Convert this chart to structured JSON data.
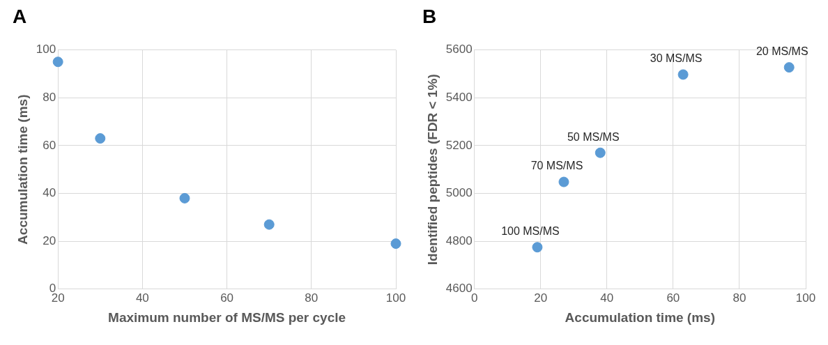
{
  "chart_data": [
    {
      "type": "scatter",
      "title": "A",
      "xlabel": "Maximum number of MS/MS per cycle",
      "ylabel": "Accumulation time (ms)",
      "x": [
        20,
        30,
        50,
        70,
        100
      ],
      "series": [
        {
          "color": "#5b9bd5",
          "values": [
            95,
            63,
            38,
            27,
            19
          ]
        }
      ],
      "xlim": [
        20,
        100
      ],
      "xticks": [
        20,
        40,
        60,
        80,
        100
      ],
      "ylim": [
        0,
        100
      ],
      "yticks": [
        0,
        20,
        40,
        60,
        80,
        100
      ],
      "grid": true,
      "marker": "circle"
    },
    {
      "type": "scatter",
      "title": "B",
      "xlabel": "Accumulation time (ms)",
      "ylabel": "Identified peptides (FDR < 1%)",
      "x": [
        19,
        27,
        38,
        63,
        95
      ],
      "series": [
        {
          "color": "#5b9bd5",
          "values": [
            4775,
            5048,
            5170,
            5497,
            5527
          ]
        }
      ],
      "xlim": [
        0,
        100
      ],
      "xticks": [
        0,
        20,
        40,
        60,
        80,
        100
      ],
      "ylim": [
        4600,
        5600
      ],
      "yticks": [
        4600,
        4800,
        5000,
        5200,
        5400,
        5600
      ],
      "grid": true,
      "marker": "circle",
      "annotations": [
        {
          "text": "100 MS/MS",
          "x": 19,
          "y": 4775
        },
        {
          "text": "70 MS/MS",
          "x": 27,
          "y": 5048
        },
        {
          "text": "50 MS/MS",
          "x": 38,
          "y": 5170
        },
        {
          "text": "30 MS/MS",
          "x": 63,
          "y": 5497
        },
        {
          "text": "20 MS/MS",
          "x": 95,
          "y": 5527
        }
      ]
    }
  ]
}
